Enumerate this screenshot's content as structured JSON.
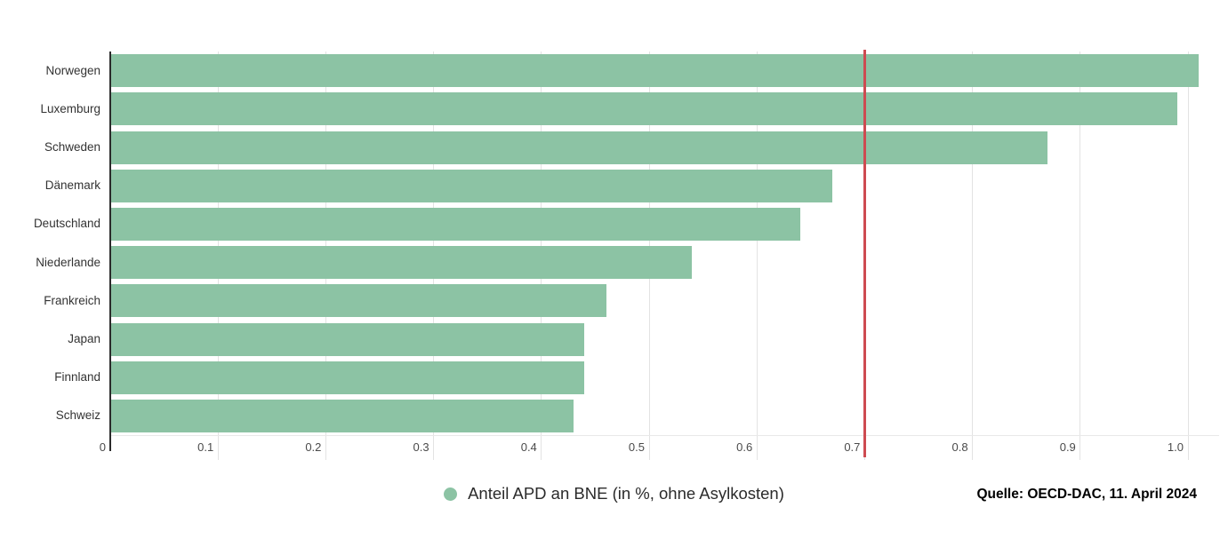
{
  "chart_data": {
    "type": "bar",
    "orientation": "horizontal",
    "title": "",
    "categories": [
      "Norwegen",
      "Luxemburg",
      "Schweden",
      "Dänemark",
      "Deutschland",
      "Niederlande",
      "Frankreich",
      "Japan",
      "Finnland",
      "Schweiz"
    ],
    "values": [
      1.01,
      0.99,
      0.87,
      0.67,
      0.64,
      0.54,
      0.46,
      0.44,
      0.44,
      0.43
    ],
    "series_name": "Anteil APD an BNE (in %, ohne Asylkosten)",
    "xlabel": "",
    "ylabel": "",
    "xlim": [
      0,
      1.037
    ],
    "x_ticks": [
      0,
      0.1,
      0.2,
      0.3,
      0.4,
      0.5,
      0.6,
      0.7,
      0.8,
      0.9,
      1.0
    ],
    "x_tick_labels": [
      "0",
      "0.1",
      "0.2",
      "0.3",
      "0.4",
      "0.5",
      "0.6",
      "0.7",
      "0.8",
      "0.9",
      "1.0"
    ],
    "grid": true,
    "legend_position": "bottom-center",
    "bar_color": "#8CC3A4",
    "target_line": {
      "value": 0.7,
      "color": "#CE4B51",
      "meaning": "0.7-percent target"
    }
  },
  "legend": {
    "label": "Anteil APD an BNE (in %, ohne Asylkosten)",
    "marker_color": "#8CC3A4"
  },
  "source": {
    "text": "Quelle: OECD-DAC, 11. April 2024"
  },
  "colors": {
    "axis": "#2b2b2b",
    "gridline": "#e3e3e3",
    "tick_text": "#4a4a4a",
    "category_text": "#333333"
  }
}
